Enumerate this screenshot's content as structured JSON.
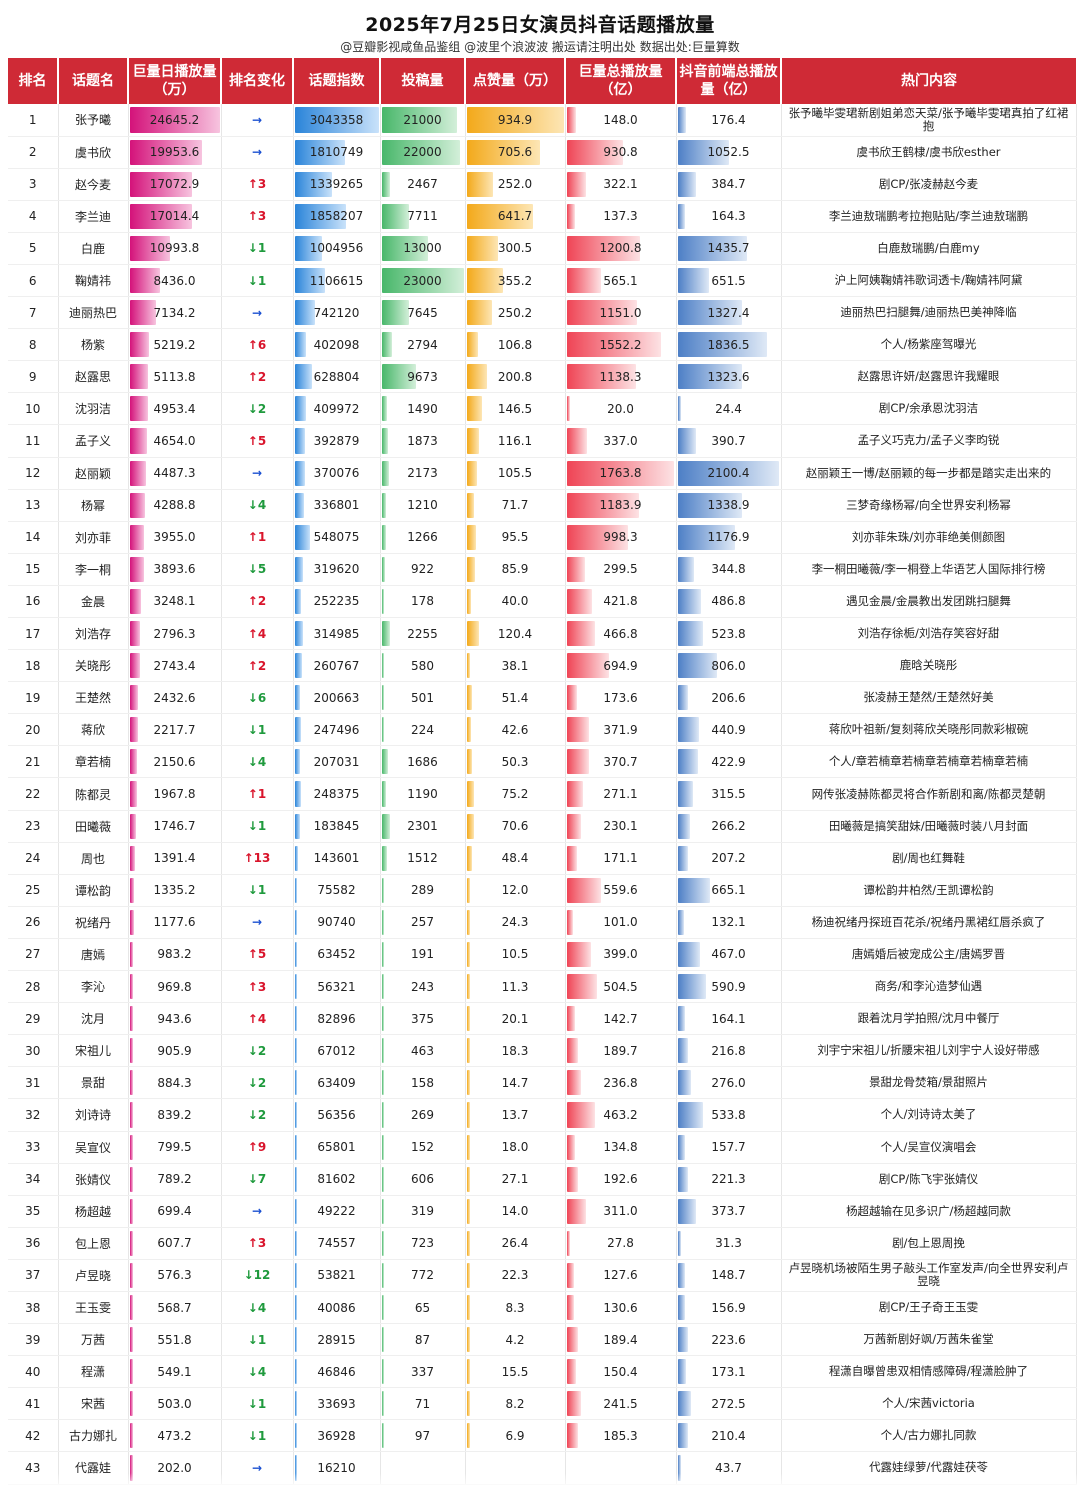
{
  "chart_data": {
    "type": "table",
    "title": "2025年7月25日女演员抖音话题播放量",
    "subtitle": "@豆瓣影视咸鱼品鉴组  @波里个浪波波  搬运请注明出处  数据出处:巨量算数",
    "columns": [
      "排名",
      "话题名",
      "巨量日播放量（万）",
      "排名变化",
      "话题指数",
      "投稿量",
      "点赞量（万）",
      "巨量总播放量（亿）",
      "抖音前端总播放量（亿）",
      "热门内容"
    ],
    "rows": [
      {
        "rank": "1",
        "name": "张予曦",
        "daily": "24645.2",
        "change": "→",
        "index": "3043358",
        "posts": "21000",
        "likes": "934.9",
        "total": "148.0",
        "front": "176.4",
        "topic": "张予曦毕雯珺新剧姐弟恋天菜/张予曦毕雯珺真拍了红裙抱"
      },
      {
        "rank": "2",
        "name": "虞书欣",
        "daily": "19953.6",
        "change": "→",
        "index": "1810749",
        "posts": "22000",
        "likes": "705.6",
        "total": "930.8",
        "front": "1052.5",
        "topic": "虞书欣王鹤棣/虞书欣esther"
      },
      {
        "rank": "3",
        "name": "赵今麦",
        "daily": "17072.9",
        "change": "↑3",
        "index": "1339265",
        "posts": "2467",
        "likes": "252.0",
        "total": "322.1",
        "front": "384.7",
        "topic": "剧CP/张凌赫赵今麦"
      },
      {
        "rank": "4",
        "name": "李兰迪",
        "daily": "17014.4",
        "change": "↑3",
        "index": "1858207",
        "posts": "7711",
        "likes": "641.7",
        "total": "137.3",
        "front": "164.3",
        "topic": "李兰迪敖瑞鹏考拉抱贴贴/李兰迪敖瑞鹏"
      },
      {
        "rank": "5",
        "name": "白鹿",
        "daily": "10993.8",
        "change": "↓1",
        "index": "1004956",
        "posts": "13000",
        "likes": "300.5",
        "total": "1200.8",
        "front": "1435.7",
        "topic": "白鹿敖瑞鹏/白鹿my"
      },
      {
        "rank": "6",
        "name": "鞠婧祎",
        "daily": "8436.0",
        "change": "↓1",
        "index": "1106615",
        "posts": "23000",
        "likes": "355.2",
        "total": "565.1",
        "front": "651.5",
        "topic": "沪上阿姨鞠婧祎歌词透卡/鞠婧祎阿黛"
      },
      {
        "rank": "7",
        "name": "迪丽热巴",
        "daily": "7134.2",
        "change": "→",
        "index": "742120",
        "posts": "7645",
        "likes": "250.2",
        "total": "1151.0",
        "front": "1327.4",
        "topic": "迪丽热巴扫腿舞/迪丽热巴美神降临"
      },
      {
        "rank": "8",
        "name": "杨紫",
        "daily": "5219.2",
        "change": "↑6",
        "index": "402098",
        "posts": "2794",
        "likes": "106.8",
        "total": "1552.2",
        "front": "1836.5",
        "topic": "个人/杨紫座驾曝光"
      },
      {
        "rank": "9",
        "name": "赵露思",
        "daily": "5113.8",
        "change": "↑2",
        "index": "628804",
        "posts": "9673",
        "likes": "200.8",
        "total": "1138.3",
        "front": "1323.6",
        "topic": "赵露思许妍/赵露思许我耀眼"
      },
      {
        "rank": "10",
        "name": "沈羽洁",
        "daily": "4953.4",
        "change": "↓2",
        "index": "409972",
        "posts": "1490",
        "likes": "146.5",
        "total": "20.0",
        "front": "24.4",
        "topic": "剧CP/余承恩沈羽洁"
      },
      {
        "rank": "11",
        "name": "孟子义",
        "daily": "4654.0",
        "change": "↑5",
        "index": "392879",
        "posts": "1873",
        "likes": "116.1",
        "total": "337.0",
        "front": "390.7",
        "topic": "孟子义巧克力/孟子义李昀锐"
      },
      {
        "rank": "12",
        "name": "赵丽颖",
        "daily": "4487.3",
        "change": "→",
        "index": "370076",
        "posts": "2173",
        "likes": "105.5",
        "total": "1763.8",
        "front": "2100.4",
        "topic": "赵丽颖王一博/赵丽颖的每一步都是踏实走出来的"
      },
      {
        "rank": "13",
        "name": "杨幂",
        "daily": "4288.8",
        "change": "↓4",
        "index": "336801",
        "posts": "1210",
        "likes": "71.7",
        "total": "1183.9",
        "front": "1338.9",
        "topic": "三梦奇缘杨幂/向全世界安利杨幂"
      },
      {
        "rank": "14",
        "name": "刘亦菲",
        "daily": "3955.0",
        "change": "↑1",
        "index": "548075",
        "posts": "1266",
        "likes": "95.5",
        "total": "998.3",
        "front": "1176.9",
        "topic": "刘亦菲朱珠/刘亦菲绝美侧颜图"
      },
      {
        "rank": "15",
        "name": "李一桐",
        "daily": "3893.6",
        "change": "↓5",
        "index": "319620",
        "posts": "922",
        "likes": "85.9",
        "total": "299.5",
        "front": "344.8",
        "topic": "李一桐田曦薇/李一桐登上华语艺人国际排行榜"
      },
      {
        "rank": "16",
        "name": "金晨",
        "daily": "3248.1",
        "change": "↑2",
        "index": "252235",
        "posts": "178",
        "likes": "40.0",
        "total": "421.8",
        "front": "486.8",
        "topic": "遇见金晨/金晨教出发团跳扫腿舞"
      },
      {
        "rank": "17",
        "name": "刘浩存",
        "daily": "2796.3",
        "change": "↑4",
        "index": "314985",
        "posts": "2255",
        "likes": "120.4",
        "total": "466.8",
        "front": "523.8",
        "topic": "刘浩存徐栀/刘浩存笑容好甜"
      },
      {
        "rank": "18",
        "name": "关晓彤",
        "daily": "2743.4",
        "change": "↑2",
        "index": "260767",
        "posts": "580",
        "likes": "38.1",
        "total": "694.9",
        "front": "806.0",
        "topic": "鹿晗关晓彤"
      },
      {
        "rank": "19",
        "name": "王楚然",
        "daily": "2432.6",
        "change": "↓6",
        "index": "200663",
        "posts": "501",
        "likes": "51.4",
        "total": "173.6",
        "front": "206.6",
        "topic": "张凌赫王楚然/王楚然好美"
      },
      {
        "rank": "20",
        "name": "蒋欣",
        "daily": "2217.7",
        "change": "↓1",
        "index": "247496",
        "posts": "224",
        "likes": "42.6",
        "total": "371.9",
        "front": "440.9",
        "topic": "蒋欣叶祖新/复刻蒋欣关晓彤同款彩椒碗"
      },
      {
        "rank": "21",
        "name": "章若楠",
        "daily": "2150.6",
        "change": "↓4",
        "index": "207031",
        "posts": "1686",
        "likes": "50.3",
        "total": "370.7",
        "front": "422.9",
        "topic": "个人/章若楠章若楠章若楠章若楠章若楠"
      },
      {
        "rank": "22",
        "name": "陈都灵",
        "daily": "1967.8",
        "change": "↑1",
        "index": "248375",
        "posts": "1190",
        "likes": "75.2",
        "total": "271.1",
        "front": "315.5",
        "topic": "网传张凌赫陈都灵将合作新剧和离/陈都灵楚朝"
      },
      {
        "rank": "23",
        "name": "田曦薇",
        "daily": "1746.7",
        "change": "↓1",
        "index": "183845",
        "posts": "2301",
        "likes": "70.6",
        "total": "230.1",
        "front": "266.2",
        "topic": "田曦薇是搞笑甜妹/田曦薇时装八月封面"
      },
      {
        "rank": "24",
        "name": "周也",
        "daily": "1391.4",
        "change": "↑13",
        "index": "143601",
        "posts": "1512",
        "likes": "48.4",
        "total": "171.1",
        "front": "207.2",
        "topic": "剧/周也红舞鞋"
      },
      {
        "rank": "25",
        "name": "谭松韵",
        "daily": "1335.2",
        "change": "↓1",
        "index": "75582",
        "posts": "289",
        "likes": "12.0",
        "total": "559.6",
        "front": "665.1",
        "topic": "谭松韵井柏然/王凯谭松韵"
      },
      {
        "rank": "26",
        "name": "祝绪丹",
        "daily": "1177.6",
        "change": "→",
        "index": "90740",
        "posts": "257",
        "likes": "24.3",
        "total": "101.0",
        "front": "132.1",
        "topic": "杨迪祝绪丹探班百花杀/祝绪丹黑裙红唇杀疯了"
      },
      {
        "rank": "27",
        "name": "唐嫣",
        "daily": "983.2",
        "change": "↑5",
        "index": "63452",
        "posts": "191",
        "likes": "10.5",
        "total": "399.0",
        "front": "467.0",
        "topic": "唐嫣婚后被宠成公主/唐嫣罗晋"
      },
      {
        "rank": "28",
        "name": "李沁",
        "daily": "969.8",
        "change": "↑3",
        "index": "56321",
        "posts": "243",
        "likes": "11.3",
        "total": "504.5",
        "front": "590.9",
        "topic": "商务/和李沁造梦仙遇"
      },
      {
        "rank": "29",
        "name": "沈月",
        "daily": "943.6",
        "change": "↑4",
        "index": "82896",
        "posts": "375",
        "likes": "20.1",
        "total": "142.7",
        "front": "164.1",
        "topic": "跟着沈月学拍照/沈月中餐厅"
      },
      {
        "rank": "30",
        "name": "宋祖儿",
        "daily": "905.9",
        "change": "↓2",
        "index": "67012",
        "posts": "463",
        "likes": "18.3",
        "total": "189.7",
        "front": "216.8",
        "topic": "刘宇宁宋祖儿/折腰宋祖儿刘宇宁人设好带感"
      },
      {
        "rank": "31",
        "name": "景甜",
        "daily": "884.3",
        "change": "↓2",
        "index": "63409",
        "posts": "158",
        "likes": "14.7",
        "total": "236.8",
        "front": "276.0",
        "topic": "景甜龙骨焚箱/景甜照片"
      },
      {
        "rank": "32",
        "name": "刘诗诗",
        "daily": "839.2",
        "change": "↓2",
        "index": "56356",
        "posts": "269",
        "likes": "13.7",
        "total": "463.2",
        "front": "533.8",
        "topic": "个人/刘诗诗太美了"
      },
      {
        "rank": "33",
        "name": "吴宣仪",
        "daily": "799.5",
        "change": "↑9",
        "index": "65801",
        "posts": "152",
        "likes": "18.0",
        "total": "134.8",
        "front": "157.7",
        "topic": "个人/吴宣仪演唱会"
      },
      {
        "rank": "34",
        "name": "张婧仪",
        "daily": "789.2",
        "change": "↓7",
        "index": "81602",
        "posts": "606",
        "likes": "27.1",
        "total": "192.6",
        "front": "221.3",
        "topic": "剧CP/陈飞宇张婧仪"
      },
      {
        "rank": "35",
        "name": "杨超越",
        "daily": "699.4",
        "change": "→",
        "index": "49222",
        "posts": "319",
        "likes": "14.0",
        "total": "311.0",
        "front": "373.7",
        "topic": "杨超越输在见多识广/杨超越同款"
      },
      {
        "rank": "36",
        "name": "包上恩",
        "daily": "607.7",
        "change": "↑3",
        "index": "74557",
        "posts": "723",
        "likes": "26.4",
        "total": "27.8",
        "front": "31.3",
        "topic": "剧/包上恩周挽"
      },
      {
        "rank": "37",
        "name": "卢昱晓",
        "daily": "576.3",
        "change": "↓12",
        "index": "53821",
        "posts": "772",
        "likes": "22.3",
        "total": "127.6",
        "front": "148.7",
        "topic": "卢昱晓机场被陌生男子敲头工作室发声/向全世界安利卢昱晓"
      },
      {
        "rank": "38",
        "name": "王玉雯",
        "daily": "568.7",
        "change": "↓4",
        "index": "40086",
        "posts": "65",
        "likes": "8.3",
        "total": "130.6",
        "front": "156.9",
        "topic": "剧CP/王子奇王玉雯"
      },
      {
        "rank": "39",
        "name": "万茜",
        "daily": "551.8",
        "change": "↓1",
        "index": "28915",
        "posts": "87",
        "likes": "4.2",
        "total": "189.4",
        "front": "223.6",
        "topic": "万茜新剧好飒/万茜朱雀堂"
      },
      {
        "rank": "40",
        "name": "程潇",
        "daily": "549.1",
        "change": "↓4",
        "index": "46846",
        "posts": "337",
        "likes": "15.5",
        "total": "150.4",
        "front": "173.1",
        "topic": "程潇自曝曾患双相情感障碍/程潇脸肿了"
      },
      {
        "rank": "41",
        "name": "宋茜",
        "daily": "503.0",
        "change": "↓1",
        "index": "33693",
        "posts": "71",
        "likes": "8.2",
        "total": "241.5",
        "front": "272.5",
        "topic": "个人/宋茜victoria"
      },
      {
        "rank": "42",
        "name": "古力娜扎",
        "daily": "473.2",
        "change": "↓1",
        "index": "36928",
        "posts": "97",
        "likes": "6.9",
        "total": "185.3",
        "front": "210.4",
        "topic": "个人/古力娜扎同款"
      },
      {
        "rank": "43",
        "name": "代露娃",
        "daily": "202.0",
        "change": "→",
        "index": "16210",
        "posts": "",
        "likes": "",
        "total": "",
        "front": "43.7",
        "topic": "代露娃绿萝/代露娃茯苓"
      }
    ]
  }
}
